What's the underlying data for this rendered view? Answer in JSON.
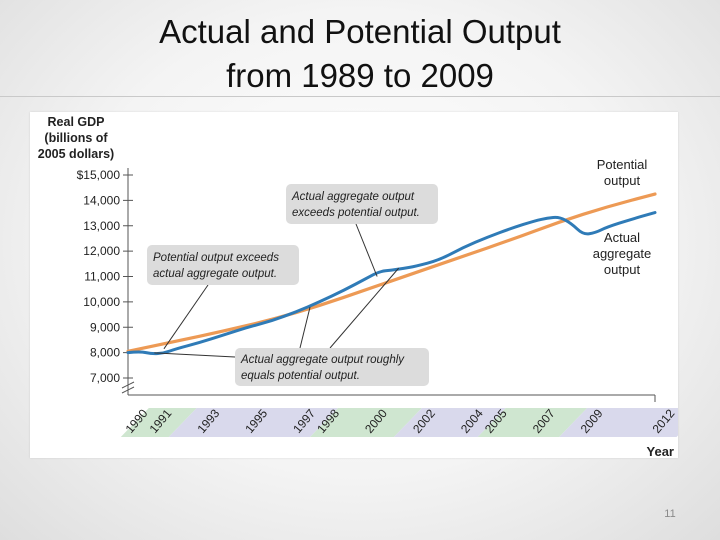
{
  "slide": {
    "title_line1": "Actual and Potential Output",
    "title_line2": "from 1989 to 2009",
    "page_number": "11"
  },
  "chart_data": {
    "type": "line",
    "title": "Actual and Potential Output from 1989 to 2009",
    "ylabel_lines": [
      "Real GDP",
      "(billions of",
      "2005 dollars)"
    ],
    "xlabel": "Year",
    "ylim": [
      6500,
      15600
    ],
    "xlim": [
      1990,
      2012
    ],
    "y_ticks": [
      {
        "value": 15000,
        "label": "$15,000"
      },
      {
        "value": 14000,
        "label": "14,000"
      },
      {
        "value": 13000,
        "label": "13,000"
      },
      {
        "value": 12000,
        "label": "12,000"
      },
      {
        "value": 11000,
        "label": "11,000"
      },
      {
        "value": 10000,
        "label": "10,000"
      },
      {
        "value": 9000,
        "label": "9,000"
      },
      {
        "value": 8000,
        "label": "8,000"
      },
      {
        "value": 7000,
        "label": "7,000"
      }
    ],
    "x_ticks": [
      {
        "value": 1990,
        "label": "1990",
        "band": "green"
      },
      {
        "value": 1991,
        "label": "1991",
        "band": "green"
      },
      {
        "value": 1993,
        "label": "1993",
        "band": "purple"
      },
      {
        "value": 1995,
        "label": "1995",
        "band": "purple"
      },
      {
        "value": 1997,
        "label": "1997",
        "band": "purple"
      },
      {
        "value": 1998,
        "label": "1998",
        "band": "green"
      },
      {
        "value": 2000,
        "label": "2000",
        "band": "green"
      },
      {
        "value": 2002,
        "label": "2002",
        "band": "purple"
      },
      {
        "value": 2004,
        "label": "2004",
        "band": "purple"
      },
      {
        "value": 2005,
        "label": "2005",
        "band": "green"
      },
      {
        "value": 2007,
        "label": "2007",
        "band": "green"
      },
      {
        "value": 2009,
        "label": "2009",
        "band": "purple"
      },
      {
        "value": 2012,
        "label": "2012",
        "band": "purple"
      }
    ],
    "band_segments": [
      {
        "from": 1989.7,
        "to": 1991.7,
        "color": "green"
      },
      {
        "from": 1991.7,
        "to": 1997.6,
        "color": "purple"
      },
      {
        "from": 1997.6,
        "to": 2001.1,
        "color": "green"
      },
      {
        "from": 2001.1,
        "to": 2004.6,
        "color": "purple"
      },
      {
        "from": 2004.6,
        "to": 2008.0,
        "color": "green"
      },
      {
        "from": 2008.0,
        "to": 2012.9,
        "color": "purple"
      }
    ],
    "series": [
      {
        "name": "Potential output",
        "label_lines": [
          "Potential",
          "output"
        ],
        "color": "#ed9a55",
        "x": [
          1990,
          1992,
          1994,
          1996,
          1998,
          2000,
          2002,
          2004,
          2006,
          2008,
          2010,
          2012
        ],
        "values": [
          8050,
          8450,
          8850,
          9300,
          9850,
          10500,
          11150,
          11800,
          12450,
          13150,
          13750,
          14250
        ]
      },
      {
        "name": "Actual aggregate output",
        "label_lines": [
          "Actual",
          "aggregate",
          "output"
        ],
        "color": "#2f7bb7",
        "x": [
          1990,
          1990.5,
          1991,
          1991.5,
          1992,
          1993,
          1994,
          1995,
          1996,
          1997,
          1998,
          1999,
          2000,
          2000.5,
          2001,
          2001.5,
          2002,
          2003,
          2004,
          2005,
          2006,
          2007,
          2007.5,
          2008,
          2008.5,
          2009,
          2009.5,
          2010,
          2011,
          2012
        ],
        "values": [
          8000,
          8050,
          7950,
          7980,
          8150,
          8400,
          8700,
          9000,
          9250,
          9600,
          10000,
          10450,
          10950,
          11200,
          11250,
          11320,
          11400,
          11650,
          12150,
          12550,
          12900,
          13200,
          13300,
          13350,
          13100,
          12650,
          12720,
          12950,
          13250,
          13520
        ]
      }
    ],
    "annotations": [
      {
        "text_lines": [
          "Actual aggregate output",
          "exceeds potential output."
        ],
        "points_to": {
          "x": 2000.4,
          "y": 11000
        }
      },
      {
        "text_lines": [
          "Potential output exceeds",
          "actual aggregate output."
        ],
        "points_to": {
          "x": 1991.5,
          "y": 8150
        }
      },
      {
        "text_lines": [
          "Actual aggregate output roughly",
          "equals potential output."
        ],
        "points_to": [
          {
            "x": 1991.1,
            "y": 7990
          },
          {
            "x": 1997.6,
            "y": 9800
          },
          {
            "x": 2001.3,
            "y": 11330
          }
        ]
      }
    ]
  }
}
